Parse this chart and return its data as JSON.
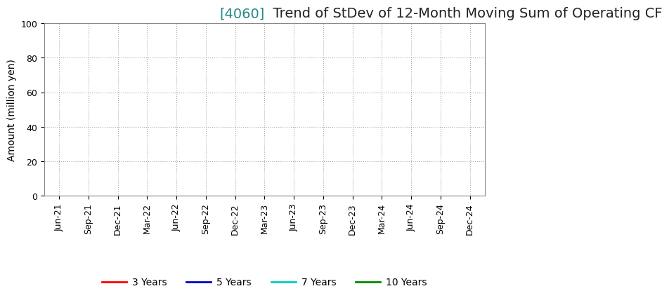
{
  "title_bracket": "[4060]",
  "title_main": "  Trend of StDev of 12-Month Moving Sum of Operating CF",
  "ylabel": "Amount (million yen)",
  "ylim": [
    0,
    100
  ],
  "yticks": [
    0,
    20,
    40,
    60,
    80,
    100
  ],
  "background_color": "#ffffff",
  "grid_color": "#aaaaaa",
  "title_bracket_color": "#228888",
  "title_main_color": "#222222",
  "legend_entries": [
    {
      "label": "3 Years",
      "color": "#ff0000"
    },
    {
      "label": "5 Years",
      "color": "#0000cc"
    },
    {
      "label": "7 Years",
      "color": "#00cccc"
    },
    {
      "label": "10 Years",
      "color": "#008800"
    }
  ],
  "x_tick_labels": [
    "Jun-21",
    "Sep-21",
    "Dec-21",
    "Mar-22",
    "Jun-22",
    "Sep-22",
    "Dec-22",
    "Mar-23",
    "Jun-23",
    "Sep-23",
    "Dec-23",
    "Mar-24",
    "Jun-24",
    "Sep-24",
    "Dec-24"
  ],
  "title_fontsize": 14,
  "axis_label_fontsize": 10,
  "tick_fontsize": 9,
  "legend_fontsize": 10
}
